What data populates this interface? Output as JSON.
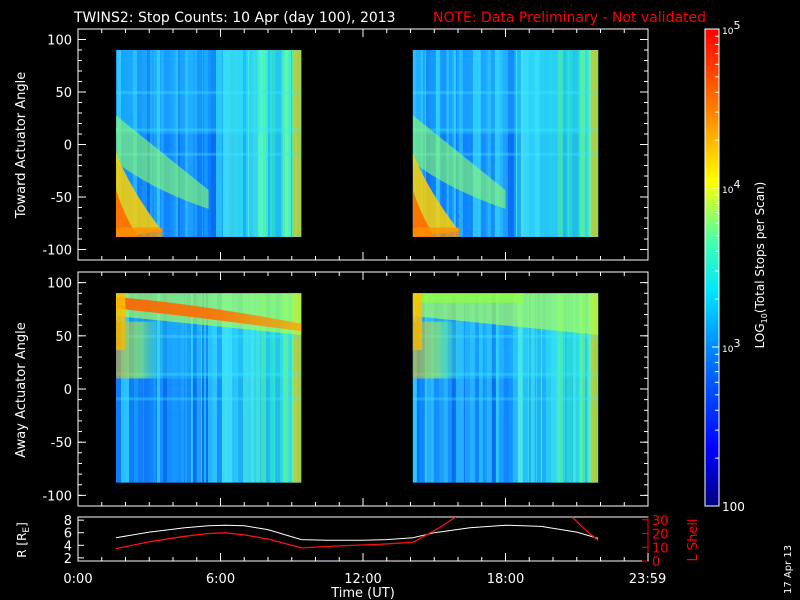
{
  "header": {
    "title": "TWINS2: Stop Counts: 10 Apr (day 100), 2013",
    "note": "NOTE: Data Preliminary - Not validated",
    "date_stamp": "17 Apr 13"
  },
  "colors": {
    "background": "#000000",
    "foreground": "#ffffff",
    "note": "#ff0000",
    "r_line": "#ffffff",
    "lshell_line": "#ff1010"
  },
  "chart_data": [
    {
      "type": "heatmap",
      "name": "toward",
      "ylabel": "Toward Actuator Angle",
      "ylim": [
        -110,
        110
      ],
      "yticks": [
        "100",
        "50",
        "0",
        "-50",
        "-100"
      ],
      "xlim": [
        0,
        24
      ],
      "log_scale": true,
      "data_segments": [
        [
          1.6,
          9.4
        ],
        [
          14.1,
          21.9
        ]
      ],
      "y_range": [
        -88,
        90
      ],
      "grid": false
    },
    {
      "type": "heatmap",
      "name": "away",
      "ylabel": "Away Actuator Angle",
      "ylim": [
        -110,
        110
      ],
      "yticks": [
        "100",
        "50",
        "0",
        "-50",
        "-100"
      ],
      "xlim": [
        0,
        24
      ],
      "log_scale": true,
      "data_segments": [
        [
          1.6,
          9.4
        ],
        [
          14.1,
          21.9
        ]
      ],
      "y_range": [
        -88,
        90
      ],
      "grid": false
    },
    {
      "type": "line",
      "name": "ephemeris",
      "xlabel": "Time (UT)",
      "xticks": [
        "0:00",
        "6:00",
        "12:00",
        "18:00",
        "23:59"
      ],
      "xlim": [
        0,
        24
      ],
      "ylabel_left": "R [R",
      "ylabel_left_sub": "E",
      "ylabel_left_close": "]",
      "ylabel_right": "L Shell",
      "yticks_left": [
        "8",
        "6",
        "4",
        "2"
      ],
      "yticks_right": [
        "30",
        "20",
        "10",
        "0"
      ],
      "ylim_left": [
        1.5,
        8.5
      ],
      "ylim_right": [
        0,
        32
      ],
      "series": [
        {
          "name": "R",
          "color": "#ffffff",
          "x": [
            1.6,
            3,
            4.5,
            5.5,
            6.2,
            7,
            8,
            9.4,
            10.5,
            12,
            13,
            14.1,
            15,
            16.5,
            18,
            19.5,
            21,
            21.9
          ],
          "y": [
            5.2,
            6.1,
            6.8,
            7.1,
            7.2,
            7.1,
            6.5,
            4.9,
            4.8,
            4.8,
            4.9,
            5.2,
            6.0,
            6.8,
            7.2,
            7.0,
            6.1,
            5.1
          ]
        },
        {
          "name": "L Shell",
          "color": "#ff1010",
          "segments": [
            {
              "x": [
                1.6,
                3,
                4.5,
                5.5,
                6.2,
                7,
                8,
                9.4
              ],
              "y": [
                9,
                14,
                18,
                20,
                20.5,
                19,
                16,
                9.5
              ]
            },
            {
              "x": [
                9.4,
                11,
                12.5,
                14.1
              ],
              "y": [
                9.5,
                11,
                12,
                13.5
              ]
            },
            {
              "x": [
                14.1,
                15.2,
                15.9
              ],
              "y": [
                13.5,
                24,
                32
              ]
            },
            {
              "x": [
                20.8,
                21.4,
                21.9
              ],
              "y": [
                32,
                22,
                15
              ]
            }
          ]
        }
      ]
    }
  ],
  "colorbar": {
    "label_prefix": "LOG",
    "label_sub": "10",
    "label_suffix": "(Total Stops per Scan)",
    "scale": "log",
    "range": [
      100,
      100000
    ],
    "ticks": [
      {
        "value": 100000,
        "base": "10",
        "exp": "5"
      },
      {
        "value": 10000,
        "base": "10",
        "exp": "4"
      },
      {
        "value": 1000,
        "base": "10",
        "exp": "3"
      },
      {
        "value": 100,
        "label": "100"
      }
    ]
  }
}
